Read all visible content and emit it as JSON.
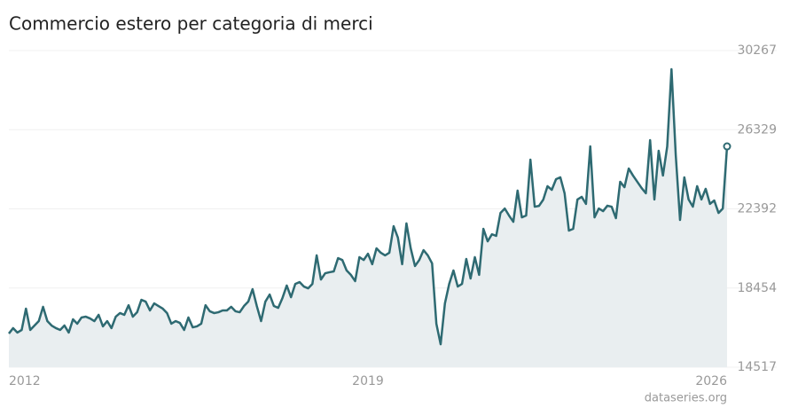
{
  "chart_data": {
    "type": "area",
    "title": "Commercio estero per categoria di merci",
    "source": "dataseries.org",
    "color": "#2e6a72",
    "area_color": "#e9eef0",
    "grid": true,
    "ylim": [
      14517,
      30267
    ],
    "yticks": [
      14517,
      18454,
      22392,
      26329,
      30267
    ],
    "categories": [
      "2012",
      null,
      null,
      null,
      null,
      null,
      null,
      null,
      null,
      null,
      null,
      null,
      null,
      null,
      null,
      null,
      null,
      null,
      null,
      null,
      null,
      null,
      null,
      null,
      null,
      null,
      null,
      null,
      null,
      null,
      null,
      null,
      null,
      null,
      null,
      null,
      null,
      null,
      null,
      null,
      null,
      null,
      null,
      null,
      null,
      null,
      null,
      null,
      null,
      null,
      null,
      null,
      null,
      null,
      null,
      null,
      null,
      null,
      null,
      null,
      null,
      null,
      null,
      null,
      null,
      null,
      null,
      null,
      null,
      null,
      null,
      null,
      null,
      null,
      null,
      null,
      null,
      null,
      null,
      null,
      null,
      null,
      null,
      null,
      "2019",
      null,
      null,
      null,
      null,
      null,
      null,
      null,
      null,
      null,
      null,
      null,
      null,
      null,
      null,
      null,
      null,
      null,
      null,
      null,
      null,
      null,
      null,
      null,
      null,
      null,
      null,
      null,
      null,
      null,
      null,
      null,
      null,
      null,
      null,
      null,
      null,
      null,
      null,
      null,
      null,
      null,
      null,
      null,
      null,
      null,
      null,
      null,
      null,
      null,
      null,
      null,
      null,
      null,
      null,
      null,
      null,
      null,
      null,
      null,
      null,
      null,
      null,
      null,
      null,
      null,
      null,
      null,
      null,
      null,
      null,
      null,
      null,
      null,
      null,
      null,
      null,
      null,
      null,
      null,
      null,
      null,
      null,
      null,
      "2026"
    ],
    "values": [
      16190,
      16460,
      16240,
      16370,
      17430,
      16370,
      16590,
      16810,
      17520,
      16810,
      16590,
      16460,
      16370,
      16590,
      16240,
      16900,
      16680,
      16990,
      17030,
      16940,
      16810,
      17120,
      16550,
      16810,
      16460,
      17030,
      17210,
      17120,
      17600,
      17030,
      17250,
      17870,
      17780,
      17340,
      17690,
      17560,
      17430,
      17210,
      16680,
      16810,
      16720,
      16370,
      16990,
      16500,
      16550,
      16680,
      17600,
      17300,
      17210,
      17250,
      17340,
      17340,
      17520,
      17300,
      17250,
      17560,
      17780,
      18400,
      17560,
      16810,
      17780,
      18130,
      17560,
      17470,
      17960,
      18580,
      18000,
      18660,
      18750,
      18530,
      18440,
      18660,
      20080,
      18880,
      19190,
      19240,
      19280,
      19940,
      19850,
      19330,
      19110,
      18800,
      19990,
      19850,
      20160,
      19640,
      20430,
      20210,
      20080,
      20210,
      21530,
      20960,
      19640,
      21670,
      20430,
      19550,
      19850,
      20340,
      20080,
      19680,
      16680,
      15660,
      17690,
      18660,
      19330,
      18530,
      18660,
      19900,
      18930,
      19990,
      19110,
      21400,
      20780,
      21130,
      21050,
      22190,
      22410,
      22060,
      21750,
      23300,
      21970,
      22060,
      24840,
      22500,
      22540,
      22850,
      23520,
      23340,
      23870,
      23960,
      23160,
      21310,
      21400,
      22860,
      22990,
      22640,
      25500,
      21970,
      22410,
      22280,
      22550,
      22500,
      21930,
      23740,
      23470,
      24400,
      24050,
      23740,
      23430,
      23170,
      25810,
      22860,
      25280,
      24050,
      25500,
      29340,
      25060,
      21840,
      23960,
      22860,
      22500,
      23520,
      22860,
      23390,
      22640,
      22810,
      22190,
      22410,
      25500
    ]
  }
}
